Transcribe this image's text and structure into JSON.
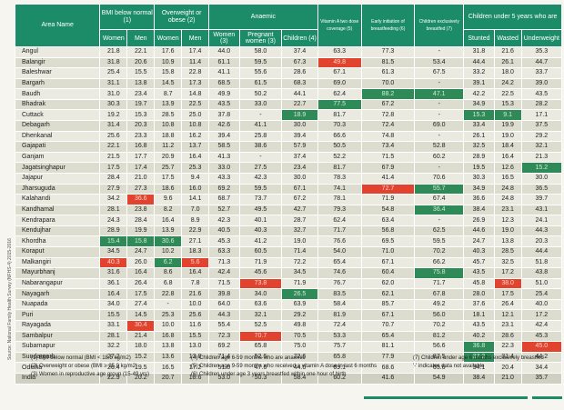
{
  "source_note": "Source: National Family Health Survey (NFHS-4) 2015-2016",
  "headers": {
    "area": "Area Name",
    "bmi": "BMI below normal (1)",
    "ow": "Overweight or obese (2)",
    "anaemic": "Anaemic",
    "vita": "Vitamin A two dose coverage (5)",
    "early": "Early initiation of breastfeeding (6)",
    "exbf": "Children exclusively breastfed (7)",
    "u5": "Children under 5 years who are",
    "women": "Women",
    "men": "Men",
    "women3": "Women (3)",
    "pregnant": "Pregnant women (3)",
    "children4": "Children (4)",
    "stunted": "Stunted",
    "wasted": "Wasted",
    "underweight": "Underweight"
  },
  "rows": [
    {
      "name": "Angul",
      "v": [
        "21.8",
        "22.1",
        "17.6",
        "17.4",
        "44.0",
        "58.0",
        "37.4",
        "63.3",
        "77.3",
        "-",
        "31.8",
        "21.6",
        "35.3"
      ]
    },
    {
      "name": "Balangir",
      "v": [
        "31.8",
        "20.6",
        "10.9",
        "11.4",
        "61.1",
        "59.5",
        "67.3",
        "49.8",
        "81.5",
        "53.4",
        "44.4",
        "26.1",
        "44.7"
      ]
    },
    {
      "name": "Baleshwar",
      "v": [
        "25.4",
        "15.5",
        "15.8",
        "22.8",
        "41.1",
        "55.6",
        "28.6",
        "67.1",
        "61.3",
        "67.5",
        "33.2",
        "18.0",
        "33.7"
      ]
    },
    {
      "name": "Bargarh",
      "v": [
        "31.1",
        "13.8",
        "14.5",
        "17.3",
        "68.5",
        "61.5",
        "68.3",
        "69.0",
        "70.0",
        "-",
        "39.1",
        "24.2",
        "39.0"
      ]
    },
    {
      "name": "Baudh",
      "v": [
        "31.0",
        "23.4",
        "8.7",
        "14.8",
        "49.9",
        "50.2",
        "44.1",
        "62.4",
        "88.2",
        "47.1",
        "42.2",
        "22.5",
        "43.5"
      ]
    },
    {
      "name": "Bhadrak",
      "v": [
        "30.3",
        "19.7",
        "13.9",
        "22.5",
        "43.5",
        "33.0",
        "22.7",
        "77.5",
        "67.2",
        "-",
        "34.9",
        "15.3",
        "28.2"
      ]
    },
    {
      "name": "Cuttack",
      "v": [
        "19.2",
        "15.3",
        "28.5",
        "25.0",
        "37.8",
        "-",
        "18.9",
        "81.7",
        "72.8",
        "-",
        "15.3",
        "9.1",
        "17.1"
      ]
    },
    {
      "name": "Debagarh",
      "v": [
        "31.4",
        "20.3",
        "10.8",
        "10.8",
        "42.6",
        "41.1",
        "30.0",
        "70.3",
        "72.4",
        "69.0",
        "33.4",
        "19.9",
        "37.5"
      ]
    },
    {
      "name": "Dhenkanal",
      "v": [
        "25.6",
        "23.3",
        "18.8",
        "16.2",
        "39.4",
        "25.8",
        "39.4",
        "66.6",
        "74.8",
        "-",
        "26.1",
        "19.0",
        "29.2"
      ]
    },
    {
      "name": "Gajapati",
      "v": [
        "22.1",
        "16.8",
        "11.2",
        "13.7",
        "58.5",
        "38.6",
        "57.9",
        "50.5",
        "73.4",
        "52.8",
        "32.5",
        "18.4",
        "32.1"
      ]
    },
    {
      "name": "Ganjam",
      "v": [
        "21.5",
        "17.7",
        "20.9",
        "16.4",
        "41.3",
        "-",
        "37.4",
        "52.2",
        "71.5",
        "60.2",
        "28.9",
        "16.4",
        "21.3"
      ]
    },
    {
      "name": "Jagatsinghapur",
      "v": [
        "17.5",
        "17.4",
        "25.7",
        "25.3",
        "33.0",
        "27.5",
        "23.4",
        "81.7",
        "67.9",
        "-",
        "19.5",
        "12.6",
        "15.2"
      ]
    },
    {
      "name": "Jajapur",
      "v": [
        "28.4",
        "21.0",
        "17.5",
        "9.4",
        "43.3",
        "42.3",
        "30.0",
        "78.3",
        "41.4",
        "70.6",
        "30.3",
        "16.5",
        "30.0"
      ]
    },
    {
      "name": "Jharsuguda",
      "v": [
        "27.9",
        "27.3",
        "18.6",
        "16.0",
        "69.2",
        "59.5",
        "67.1",
        "74.1",
        "72.7",
        "55.7",
        "34.9",
        "24.8",
        "36.5"
      ]
    },
    {
      "name": "Kalahandi",
      "v": [
        "34.2",
        "36.6",
        "9.6",
        "14.1",
        "68.7",
        "73.7",
        "67.2",
        "78.1",
        "71.9",
        "67.4",
        "36.6",
        "24.8",
        "39.7"
      ]
    },
    {
      "name": "Kandhamal",
      "v": [
        "28.1",
        "23.8",
        "8.2",
        "7.0",
        "52.7",
        "49.5",
        "42.7",
        "79.3",
        "54.8",
        "36.4",
        "38.4",
        "23.1",
        "43.1"
      ]
    },
    {
      "name": "Kendrapara",
      "v": [
        "24.3",
        "28.4",
        "16.4",
        "8.9",
        "42.3",
        "40.1",
        "28.7",
        "62.4",
        "63.4",
        "-",
        "26.9",
        "12.3",
        "24.1"
      ]
    },
    {
      "name": "Kendujhar",
      "v": [
        "28.9",
        "19.9",
        "13.9",
        "22.9",
        "40.5",
        "40.3",
        "32.7",
        "71.7",
        "56.8",
        "62.5",
        "44.6",
        "19.0",
        "44.3"
      ]
    },
    {
      "name": "Khordha",
      "v": [
        "15.4",
        "15.8",
        "30.6",
        "27.1",
        "45.3",
        "41.2",
        "19.0",
        "76.6",
        "69.5",
        "59.5",
        "24.7",
        "13.8",
        "20.3"
      ]
    },
    {
      "name": "Koraput",
      "v": [
        "34.5",
        "24.7",
        "10.2",
        "18.3",
        "63.3",
        "60.5",
        "71.4",
        "54.0",
        "71.0",
        "70.2",
        "40.3",
        "28.5",
        "44.4"
      ]
    },
    {
      "name": "Malkangiri",
      "v": [
        "40.3",
        "26.0",
        "6.2",
        "5.6",
        "71.3",
        "71.9",
        "72.2",
        "65.4",
        "67.1",
        "66.2",
        "45.7",
        "32.5",
        "51.8"
      ]
    },
    {
      "name": "Mayurbhanj",
      "v": [
        "31.6",
        "16.4",
        "8.6",
        "16.4",
        "42.4",
        "45.6",
        "34.5",
        "74.6",
        "60.4",
        "75.8",
        "43.5",
        "17.2",
        "43.8"
      ]
    },
    {
      "name": "Nabarangapur",
      "v": [
        "36.1",
        "26.4",
        "6.8",
        "7.8",
        "71.5",
        "73.8",
        "71.9",
        "76.7",
        "62.0",
        "71.7",
        "45.8",
        "38.0",
        "51.0"
      ]
    },
    {
      "name": "Nayagarh",
      "v": [
        "16.4",
        "17.5",
        "22.8",
        "21.6",
        "39.8",
        "34.0",
        "26.5",
        "83.5",
        "62.1",
        "67.8",
        "28.0",
        "17.5",
        "25.4"
      ]
    },
    {
      "name": "Nuapada",
      "v": [
        "34.0",
        "27.4",
        "-",
        "10.0",
        "64.0",
        "63.6",
        "63.9",
        "58.4",
        "85.7",
        "49.2",
        "37.6",
        "26.4",
        "40.0"
      ]
    },
    {
      "name": "Puri",
      "v": [
        "15.5",
        "14.5",
        "25.3",
        "25.6",
        "44.3",
        "32.1",
        "29.2",
        "81.9",
        "67.1",
        "56.0",
        "18.1",
        "12.1",
        "17.2"
      ]
    },
    {
      "name": "Rayagada",
      "v": [
        "33.1",
        "30.4",
        "10.0",
        "11.6",
        "55.4",
        "52.5",
        "49.8",
        "72.4",
        "70.7",
        "70.2",
        "43.5",
        "23.1",
        "42.4"
      ]
    },
    {
      "name": "Sambalpur",
      "v": [
        "28.1",
        "21.4",
        "16.8",
        "15.5",
        "72.3",
        "70.7",
        "70.5",
        "53.3",
        "65.4",
        "81.2",
        "40.2",
        "28.6",
        "45.3"
      ]
    },
    {
      "name": "Subarnapur",
      "v": [
        "32.2",
        "18.0",
        "13.8",
        "13.0",
        "69.2",
        "65.8",
        "75.0",
        "75.7",
        "81.1",
        "56.6",
        "36.8",
        "22.3",
        "45.0"
      ]
    },
    {
      "name": "Sundargarh",
      "v": [
        "27.2",
        "15.2",
        "13.6",
        "13.8",
        "71.4",
        "52.6",
        "72.6",
        "65.8",
        "77.9",
        "87.5",
        "37.2",
        "31.4",
        "44.2"
      ]
    },
    {
      "name": "Odisha",
      "v": [
        "26.4",
        "19.5",
        "16.5",
        "17.2",
        "51.0",
        "47.6",
        "44.6",
        "69.1",
        "68.6",
        "65.6",
        "34.1",
        "20.4",
        "34.4"
      ]
    },
    {
      "name": "India",
      "v": [
        "22.9",
        "20.2",
        "20.7",
        "18.6",
        "53.0",
        "50.3",
        "58.4",
        "60.2",
        "41.6",
        "54.9",
        "38.4",
        "21.0",
        "35.7"
      ]
    }
  ],
  "highlights": {
    "red": [
      "1-7",
      "13-8",
      "14-1",
      "20-0",
      "20-3",
      "22-11",
      "26-1",
      "27-5",
      "28-12",
      "22-5"
    ],
    "green": [
      "1-7x",
      "4-8",
      "4-9",
      "6-6",
      "6-10",
      "6-11",
      "11-12",
      "13-9",
      "15-9",
      "18-0",
      "18-1",
      "18-2",
      "20-2",
      "21-9",
      "23-6",
      "28-10",
      "29-10",
      "5-7"
    ]
  },
  "footnotes": {
    "n1": "(1) BMI below normal (BMI < 18.5 kg/m2)",
    "n2": "(2) Overweight or obese (BMI ≥ 25.0 kg/m2)",
    "n3": "(3) Women in reproductive age group (15-49 yrs)",
    "n4": "(4) Children age 6-59 months who are anaemic",
    "n5": "(5) Children age 9-59 months who received a vitamin A dose in last 6 months",
    "n6": "(6) Children under age 3 years breastfed within one hour of birth",
    "n7": "(7) Children under age 6 months exclusively breastfed",
    "n8": "'-' indicates data not available"
  }
}
